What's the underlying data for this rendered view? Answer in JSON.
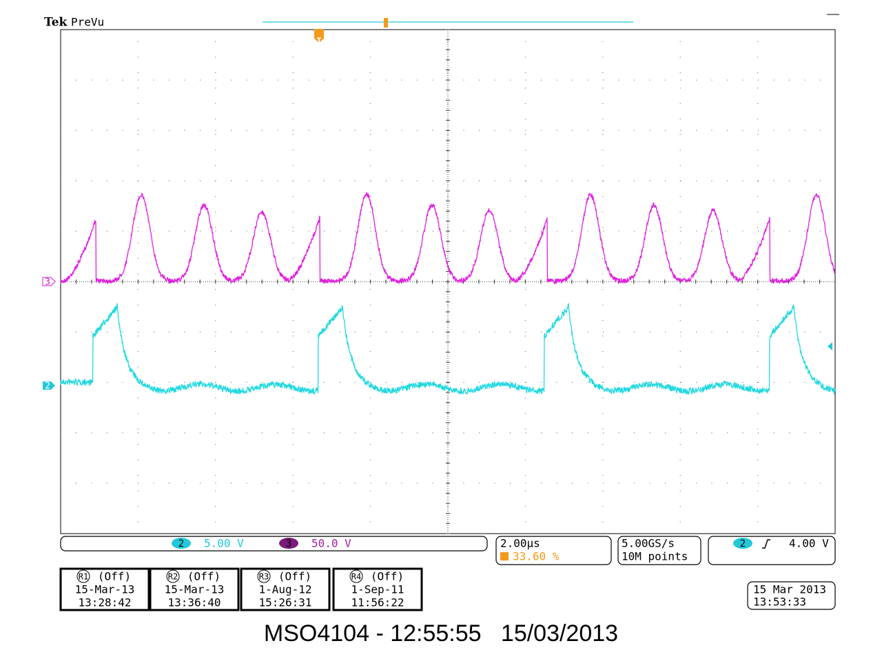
{
  "header": {
    "brand": "Tek",
    "mode": "PreVu"
  },
  "markers": {
    "ch3": "3",
    "ch2": "2",
    "trigger": "T"
  },
  "status_bar": {
    "channels": [
      {
        "number": "2",
        "scale": "5.00 V"
      },
      {
        "number": "3",
        "scale": "50.0 V"
      }
    ],
    "timebase": "2.00µs",
    "trigger_position": "33.60 %",
    "sample_rate": "5.00GS/s",
    "record_length": "10M points",
    "trigger": {
      "source": "2",
      "level": "4.00 V"
    }
  },
  "references": [
    {
      "label": "R1",
      "state": "(Off)",
      "date": "15-Mar-13",
      "time": "13:28:42"
    },
    {
      "label": "R2",
      "state": "(Off)",
      "date": "15-Mar-13",
      "time": "13:36:40"
    },
    {
      "label": "R3",
      "state": "(Off)",
      "date": "1-Aug-12",
      "time": "15:26:31"
    },
    {
      "label": "R4",
      "state": "(Off)",
      "date": "1-Sep-11",
      "time": "11:56:22"
    }
  ],
  "clock": {
    "date": "15 Mar 2013",
    "time": "13:53:33"
  },
  "footer": "MSO4104 - 12:55:55   15/03/2013"
}
